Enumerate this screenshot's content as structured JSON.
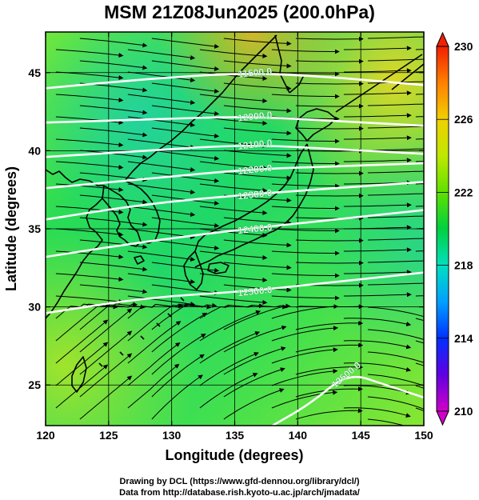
{
  "title": "MSM 21Z08Jun2025 (200.0hPa)",
  "x_axis": {
    "label": "Longitude (degrees)",
    "ticks": [
      "120",
      "125",
      "130",
      "135",
      "140",
      "145",
      "150"
    ],
    "range": [
      120,
      150
    ]
  },
  "y_axis": {
    "label": "Latitude  (degrees)",
    "ticks": [
      "25",
      "30",
      "35",
      "40",
      "45"
    ],
    "range": [
      22.4,
      47.6
    ]
  },
  "colorbar": {
    "ticks": [
      "230",
      "226",
      "222",
      "218",
      "214",
      "210"
    ],
    "range": [
      210,
      230
    ],
    "colors": [
      "#d000c8",
      "#6000e0",
      "#0030ff",
      "#00a0ff",
      "#00e0c0",
      "#00d040",
      "#60e000",
      "#c0e800",
      "#f0d000",
      "#ff8000",
      "#f02000"
    ]
  },
  "contours": [
    {
      "label": "11500.0",
      "value": 11500,
      "path_lat": [
        44.0,
        44.6,
        45.0,
        44.7,
        44.2
      ],
      "path_lon": [
        120,
        128,
        136,
        143,
        150
      ]
    },
    {
      "label": "12000.0",
      "value": 12000,
      "path_lat": [
        41.8,
        42.0,
        42.2,
        41.9,
        41.6
      ],
      "path_lon": [
        120,
        128,
        136,
        143,
        150
      ]
    },
    {
      "label": "12100.0",
      "value": 12100,
      "path_lat": [
        39.6,
        40.0,
        40.4,
        40.1,
        39.8
      ],
      "path_lon": [
        120,
        128,
        136,
        143,
        150
      ]
    },
    {
      "label": "12200.0",
      "value": 12200,
      "path_lat": [
        37.6,
        38.2,
        38.8,
        39.0,
        39.2
      ],
      "path_lon": [
        120,
        128,
        136,
        143,
        150
      ]
    },
    {
      "label": "12300.0",
      "value": 12300,
      "path_lat": [
        35.6,
        36.6,
        37.2,
        37.6,
        38.0
      ],
      "path_lon": [
        120,
        128,
        136,
        143,
        150
      ]
    },
    {
      "label": "12400.0",
      "value": 12400,
      "path_lat": [
        33.2,
        34.2,
        35.0,
        35.6,
        36.2
      ],
      "path_lon": [
        120,
        128,
        136,
        143,
        150
      ]
    },
    {
      "label": "12500.0",
      "value": 12500,
      "path_lat": [
        29.6,
        30.6,
        31.0,
        31.6,
        32.2
      ],
      "path_lon": [
        120,
        128,
        136,
        143,
        150
      ]
    },
    {
      "label": "12500.0",
      "value": 12500,
      "path_lat": [
        22.4,
        23.8,
        25.8,
        25.0,
        24.2
      ],
      "path_lon": [
        138,
        141,
        144,
        147,
        150
      ]
    }
  ],
  "credits": {
    "line1": "Drawing by DCL (https://www.gfd-dennou.org/library/dcl/)",
    "line2": "Data from http://database.rish.kyoto-u.ac.jp/arch/jmadata/"
  }
}
